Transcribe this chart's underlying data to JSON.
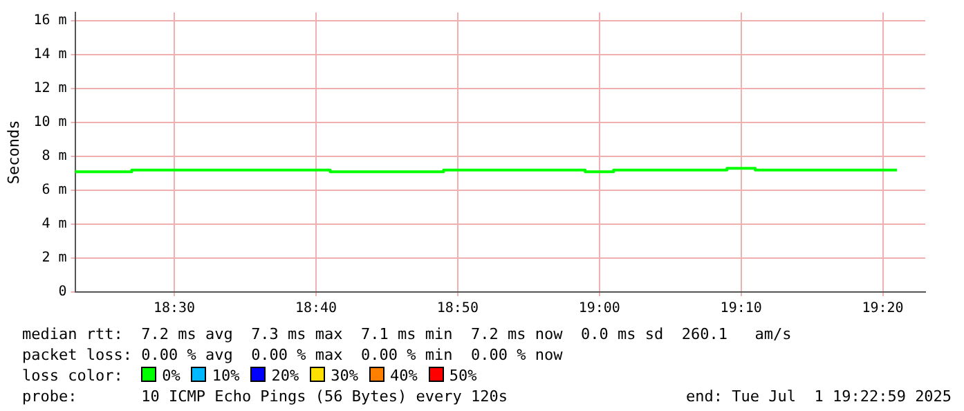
{
  "chart_data": {
    "type": "step",
    "ylabel": "Seconds",
    "legend_title": "loss color:",
    "legend": "bottom",
    "grid": true,
    "marker": "none",
    "x": [
      18.3833,
      18.4167,
      18.45,
      18.4833,
      18.5167,
      18.55,
      18.5833,
      18.6167,
      18.65,
      18.6833,
      18.7167,
      18.75,
      18.7833,
      18.8167,
      18.85,
      18.8833,
      18.9167,
      18.95,
      18.9833,
      19.0167,
      19.05,
      19.0833,
      19.1167,
      19.15,
      19.1833,
      19.2167,
      19.25,
      19.2833,
      19.3167,
      19.35
    ],
    "xlim": [
      18.3833,
      19.3833
    ],
    "xticks": [
      {
        "value": 18.5,
        "label": "18:30"
      },
      {
        "value": 18.6667,
        "label": "18:40"
      },
      {
        "value": 18.8333,
        "label": "18:50"
      },
      {
        "value": 19,
        "label": "19:00"
      },
      {
        "value": 19.1667,
        "label": "19:10"
      },
      {
        "value": 19.3333,
        "label": "19:20"
      }
    ],
    "ylim": [
      0,
      16.5
    ],
    "yticks": [
      0,
      {
        "value": 2,
        "label": "2 m"
      },
      {
        "value": 4,
        "label": "4 m"
      },
      {
        "value": 6,
        "label": "6 m"
      },
      {
        "value": 8,
        "label": "8 m"
      },
      {
        "value": 10,
        "label": "10 m"
      },
      {
        "value": 12,
        "label": "12 m"
      },
      {
        "value": 14,
        "label": "14 m"
      },
      {
        "value": 16,
        "label": "16 m"
      }
    ],
    "series": [
      {
        "name": "0%",
        "color": "#00ff00",
        "values": [
          7.2,
          7.1,
          7.1,
          7.2,
          7.2,
          7.2,
          7.2,
          7.2,
          7.2,
          7.2,
          7.1,
          7.1,
          7.1,
          7.1,
          7.2,
          7.2,
          7.2,
          7.2,
          7.2,
          7.1,
          7.2,
          7.2,
          7.2,
          7.2,
          7.3,
          7.2,
          7.2,
          7.2,
          7.2,
          7.2
        ]
      },
      {
        "name": "10%",
        "color": "#00b8ff",
        "values": [
          null,
          null,
          null,
          null,
          null,
          null,
          null,
          null,
          null,
          null,
          null,
          null,
          null,
          null,
          null,
          null,
          null,
          null,
          null,
          null,
          null,
          null,
          null,
          null,
          null,
          null,
          null,
          null,
          null,
          null
        ]
      },
      {
        "name": "20%",
        "color": "#0000ff",
        "values": [
          null,
          null,
          null,
          null,
          null,
          null,
          null,
          null,
          null,
          null,
          null,
          null,
          null,
          null,
          null,
          null,
          null,
          null,
          null,
          null,
          null,
          null,
          null,
          null,
          null,
          null,
          null,
          null,
          null,
          null
        ]
      },
      {
        "name": "30%",
        "color": "#ffe000",
        "values": [
          null,
          null,
          null,
          null,
          null,
          null,
          null,
          null,
          null,
          null,
          null,
          null,
          null,
          null,
          null,
          null,
          null,
          null,
          null,
          null,
          null,
          null,
          null,
          null,
          null,
          null,
          null,
          null,
          null,
          null
        ]
      },
      {
        "name": "40%",
        "color": "#ff8000",
        "values": [
          null,
          null,
          null,
          null,
          null,
          null,
          null,
          null,
          null,
          null,
          null,
          null,
          null,
          null,
          null,
          null,
          null,
          null,
          null,
          null,
          null,
          null,
          null,
          null,
          null,
          null,
          null,
          null,
          null,
          null
        ]
      },
      {
        "name": "50%",
        "color": "#ff0000",
        "values": [
          null,
          null,
          null,
          null,
          null,
          null,
          null,
          null,
          null,
          null,
          null,
          null,
          null,
          null,
          null,
          null,
          null,
          null,
          null,
          null,
          null,
          null,
          null,
          null,
          null,
          null,
          null,
          null,
          null,
          null
        ]
      }
    ],
    "annotations": [
      "median rtt:  7.2 ms avg  7.3 ms max  7.1 ms min  7.2 ms now  0.0 ms sd  260.1   am/s",
      "packet loss: 0.00 % avg  0.00 % max  0.00 % min  0.00 % now",
      "probe:       10 ICMP Echo Pings (56 Bytes) every 120s",
      "end: Tue Jul  1 19:22:59 2025"
    ]
  }
}
